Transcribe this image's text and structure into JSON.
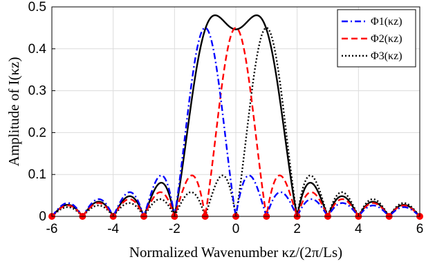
{
  "chart_data": {
    "type": "line",
    "xlabel": "Normalized Wavenumber κz/(2π/Ls)",
    "ylabel": "Amplitude of I(κz)",
    "xlim": [
      -6,
      6
    ],
    "ylim": [
      0,
      0.5
    ],
    "xticks": [
      "-6",
      "-4",
      "-2",
      "0",
      "2",
      "4",
      "6"
    ],
    "yticks": [
      "0",
      "0.1",
      "0.2",
      "0.3",
      "0.4",
      "0.5"
    ],
    "grid": true,
    "legend_position": "top-right",
    "series": [
      {
        "name": "Φ1(κz)",
        "color": "#0000ff",
        "dash": "dashdot",
        "center": -1
      },
      {
        "name": "Φ2(κz)",
        "color": "#ff0000",
        "dash": "dashed",
        "center": 0
      },
      {
        "name": "Φ3(κz)",
        "color": "#000000",
        "dash": "dotted",
        "center": 1
      },
      {
        "name": "",
        "color": "#000000",
        "dash": "solid",
        "center": null
      }
    ],
    "zero_markers": {
      "color": "#ff0000",
      "x": [
        -6,
        -5,
        -4,
        -3,
        -2,
        -1,
        0,
        1,
        2,
        3,
        4,
        5,
        6
      ],
      "y": [
        0,
        0,
        0,
        0,
        0,
        0,
        0,
        0,
        0,
        0,
        0,
        0,
        0
      ]
    },
    "peak_value": 0.45,
    "sum_peak_value": 0.48
  }
}
